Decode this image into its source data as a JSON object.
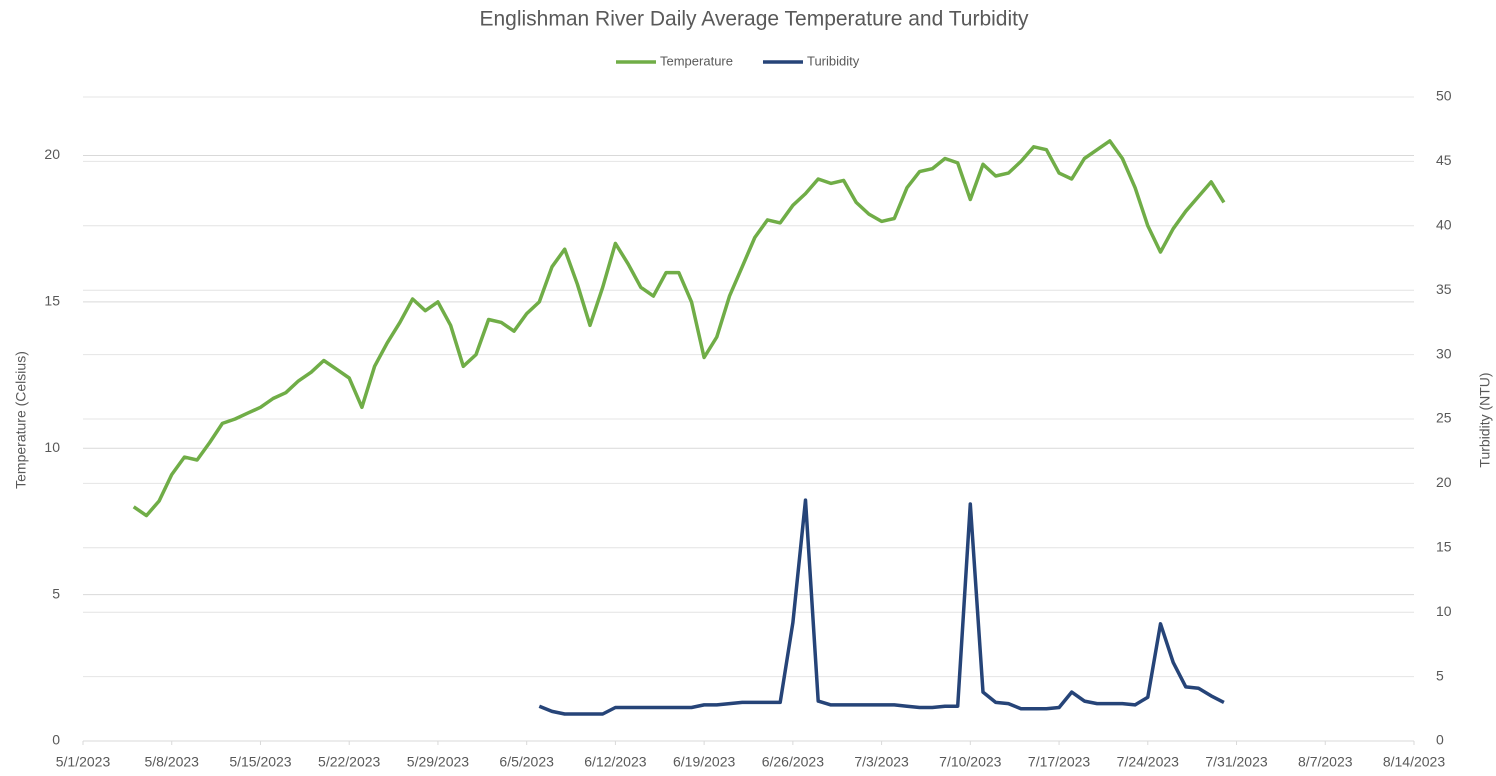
{
  "chart_data": {
    "type": "line",
    "title": "Englishman River Daily Average Temperature and Turbidity",
    "y_label": "Temperature (Celsius)",
    "y2_label": "Turbidity (NTU)",
    "x": [
      "5/5/2023",
      "5/6/2023",
      "5/7/2023",
      "5/8/2023",
      "5/9/2023",
      "5/10/2023",
      "5/11/2023",
      "5/12/2023",
      "5/13/2023",
      "5/14/2023",
      "5/15/2023",
      "5/16/2023",
      "5/17/2023",
      "5/18/2023",
      "5/19/2023",
      "5/20/2023",
      "5/21/2023",
      "5/22/2023",
      "5/23/2023",
      "5/24/2023",
      "5/25/2023",
      "5/26/2023",
      "5/27/2023",
      "5/28/2023",
      "5/29/2023",
      "5/30/2023",
      "5/31/2023",
      "6/1/2023",
      "6/2/2023",
      "6/3/2023",
      "6/4/2023",
      "6/5/2023",
      "6/6/2023",
      "6/7/2023",
      "6/8/2023",
      "6/9/2023",
      "6/10/2023",
      "6/11/2023",
      "6/12/2023",
      "6/13/2023",
      "6/14/2023",
      "6/15/2023",
      "6/16/2023",
      "6/17/2023",
      "6/18/2023",
      "6/19/2023",
      "6/20/2023",
      "6/21/2023",
      "6/22/2023",
      "6/23/2023",
      "6/24/2023",
      "6/25/2023",
      "6/26/2023",
      "6/27/2023",
      "6/28/2023",
      "6/29/2023",
      "6/30/2023",
      "7/1/2023",
      "7/2/2023",
      "7/3/2023",
      "7/4/2023",
      "7/5/2023",
      "7/6/2023",
      "7/7/2023",
      "7/8/2023",
      "7/9/2023",
      "7/10/2023",
      "7/11/2023",
      "7/12/2023",
      "7/13/2023",
      "7/14/2023",
      "7/15/2023",
      "7/16/2023",
      "7/17/2023",
      "7/18/2023",
      "7/19/2023",
      "7/20/2023",
      "7/21/2023",
      "7/22/2023",
      "7/23/2023",
      "7/24/2023",
      "7/25/2023",
      "7/26/2023",
      "7/27/2023",
      "7/28/2023",
      "7/29/2023",
      "7/30/2023"
    ],
    "series": [
      {
        "name": "Temperature",
        "color": "#70ad47",
        "axis": "y",
        "values": [
          8.0,
          7.7,
          8.2,
          9.1,
          9.7,
          9.6,
          10.2,
          10.85,
          11.0,
          11.2,
          11.4,
          11.7,
          11.9,
          12.3,
          12.6,
          13.0,
          12.7,
          12.4,
          11.4,
          12.8,
          13.6,
          14.3,
          15.1,
          14.7,
          15.0,
          14.2,
          12.8,
          13.2,
          14.4,
          14.3,
          14.0,
          14.6,
          15.0,
          16.2,
          16.8,
          15.6,
          14.2,
          15.5,
          17.0,
          16.3,
          15.5,
          15.2,
          16.0,
          16.0,
          15.0,
          13.1,
          13.8,
          15.2,
          16.2,
          17.2,
          17.8,
          17.7,
          18.3,
          18.7,
          19.2,
          19.05,
          19.15,
          18.4,
          18.0,
          17.75,
          17.85,
          18.9,
          19.45,
          19.55,
          19.9,
          19.75,
          18.5,
          19.7,
          19.3,
          19.4,
          19.8,
          20.3,
          20.2,
          19.4,
          19.2,
          19.9,
          20.2,
          20.5,
          19.9,
          18.9,
          17.6,
          16.7,
          17.5,
          18.1,
          18.6,
          19.1,
          18.4
        ]
      },
      {
        "name": "Turibidity",
        "color": "#264478",
        "axis": "y2",
        "values": [
          null,
          null,
          null,
          null,
          null,
          null,
          null,
          null,
          null,
          null,
          null,
          null,
          null,
          null,
          null,
          null,
          null,
          null,
          null,
          null,
          null,
          null,
          null,
          null,
          null,
          null,
          null,
          null,
          null,
          null,
          null,
          null,
          2.7,
          2.3,
          2.1,
          2.1,
          2.1,
          2.1,
          2.6,
          2.6,
          2.6,
          2.6,
          2.6,
          2.6,
          2.6,
          2.8,
          2.8,
          2.9,
          3.0,
          3.0,
          3.0,
          3.0,
          9.2,
          18.7,
          3.1,
          2.8,
          2.8,
          2.8,
          2.8,
          2.8,
          2.8,
          2.7,
          2.6,
          2.6,
          2.7,
          2.7,
          18.4,
          3.8,
          3.0,
          2.9,
          2.5,
          2.5,
          2.5,
          2.6,
          3.8,
          3.1,
          2.9,
          2.9,
          2.9,
          2.8,
          3.4,
          9.1,
          6.1,
          4.2,
          4.1,
          3.5,
          3.0
        ]
      }
    ],
    "xlim": [
      "5/1/2023",
      "8/14/2023"
    ],
    "xticks": [
      "5/1/2023",
      "5/8/2023",
      "5/15/2023",
      "5/22/2023",
      "5/29/2023",
      "6/5/2023",
      "6/12/2023",
      "6/19/2023",
      "6/26/2023",
      "7/3/2023",
      "7/10/2023",
      "7/17/2023",
      "7/24/2023",
      "7/31/2023",
      "8/7/2023",
      "8/14/2023"
    ],
    "ylim": [
      0,
      22
    ],
    "yticks": [
      0,
      5,
      10,
      15,
      20
    ],
    "y2lim": [
      0,
      50
    ],
    "y2ticks": [
      0,
      5,
      10,
      15,
      20,
      25,
      30,
      35,
      40,
      45,
      50
    ],
    "grid": true,
    "legend": "top"
  }
}
